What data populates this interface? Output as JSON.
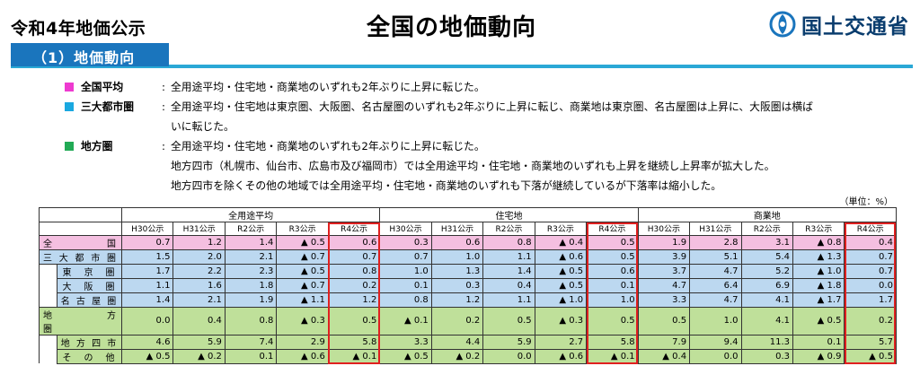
{
  "header": {
    "tag_title": "令和4年地価公示",
    "main_title": "全国の地価動向",
    "ministry_name": "国土交通省",
    "logo_icon": "mlit-logo-icon"
  },
  "section": {
    "label": "（1）地価動向"
  },
  "notes": [
    {
      "color": "#ee3ad0",
      "label": "全国平均",
      "lines": [
        "全用途平均・住宅地・商業地のいずれも2年ぶりに上昇に転じた。"
      ]
    },
    {
      "color": "#1aa8e0",
      "label": "三大都市圏",
      "lines": [
        "全用途平均・住宅地は東京圏、大阪圏、名古屋圏のいずれも2年ぶりに上昇に転じ、商業地は東京圏、名古屋圏は上昇に、大阪圏は横ば",
        "いに転じた。"
      ]
    },
    {
      "color": "#22aa55",
      "label": "地方圏",
      "lines": [
        "全用途平均・住宅地・商業地のいずれも2年ぶりに上昇に転じた。",
        "地方四市（札幌市、仙台市、広島市及び福岡市）では全用途平均・住宅地・商業地のいずれも上昇を継続し上昇率が拡大した。",
        "地方四市を除くその他の地域では全用途平均・住宅地・商業地のいずれも下落が継続しているが下落率は縮小した。"
      ]
    }
  ],
  "unit": "（単位：%）",
  "table": {
    "groups": [
      "全用途平均",
      "住宅地",
      "商業地"
    ],
    "years": [
      "H30公示",
      "H31公示",
      "R2公示",
      "R3公示",
      "R4公示"
    ],
    "rows": [
      {
        "label": "全　　　国",
        "style": "pink",
        "indent": false,
        "values": [
          "0.7",
          "1.2",
          "1.4",
          "▲ 0.5",
          "0.6",
          "0.3",
          "0.6",
          "0.8",
          "▲ 0.4",
          "0.5",
          "1.9",
          "2.8",
          "3.1",
          "▲ 0.8",
          "0.4"
        ]
      },
      {
        "label": "三 大 都 市 圏",
        "style": "blue",
        "indent": false,
        "values": [
          "1.5",
          "2.0",
          "2.1",
          "▲ 0.7",
          "0.7",
          "0.7",
          "1.0",
          "1.1",
          "▲ 0.6",
          "0.5",
          "3.9",
          "5.1",
          "5.4",
          "▲ 1.3",
          "0.7"
        ]
      },
      {
        "label": "東　京　圏",
        "style": "blue",
        "indent": true,
        "values": [
          "1.7",
          "2.2",
          "2.3",
          "▲ 0.5",
          "0.8",
          "1.0",
          "1.3",
          "1.4",
          "▲ 0.5",
          "0.6",
          "3.7",
          "4.7",
          "5.2",
          "▲ 1.0",
          "0.7"
        ]
      },
      {
        "label": "大　阪　圏",
        "style": "blue",
        "indent": true,
        "values": [
          "1.1",
          "1.6",
          "1.8",
          "▲ 0.7",
          "0.2",
          "0.1",
          "0.3",
          "0.4",
          "▲ 0.5",
          "0.1",
          "4.7",
          "6.4",
          "6.9",
          "▲ 1.8",
          "0.0"
        ]
      },
      {
        "label": "名 古 屋 圏",
        "style": "blue",
        "indent": true,
        "values": [
          "1.4",
          "2.1",
          "1.9",
          "▲ 1.1",
          "1.2",
          "0.8",
          "1.2",
          "1.1",
          "▲ 1.0",
          "1.0",
          "3.3",
          "4.7",
          "4.1",
          "▲ 1.7",
          "1.7"
        ]
      },
      {
        "label": "地　　方　　圏",
        "style": "green",
        "indent": false,
        "values": [
          "0.0",
          "0.4",
          "0.8",
          "▲ 0.3",
          "0.5",
          "▲ 0.1",
          "0.2",
          "0.5",
          "▲ 0.3",
          "0.5",
          "0.5",
          "1.0",
          "4.1",
          "▲ 0.5",
          "0.2"
        ]
      },
      {
        "label": "地 方 四 市",
        "style": "green",
        "indent": true,
        "values": [
          "4.6",
          "5.9",
          "7.4",
          "2.9",
          "5.8",
          "3.3",
          "4.4",
          "5.9",
          "2.7",
          "5.8",
          "7.9",
          "9.4",
          "11.3",
          "0.1",
          "5.7"
        ]
      },
      {
        "label": "そ　の　他",
        "style": "green",
        "indent": true,
        "values": [
          "▲ 0.5",
          "▲ 0.2",
          "0.1",
          "▲ 0.6",
          "▲ 0.1",
          "▲ 0.5",
          "▲ 0.2",
          "0.0",
          "▲ 0.6",
          "▲ 0.1",
          "▲ 0.4",
          "0.0",
          "0.3",
          "▲ 0.9",
          "▲ 0.5"
        ]
      }
    ]
  }
}
